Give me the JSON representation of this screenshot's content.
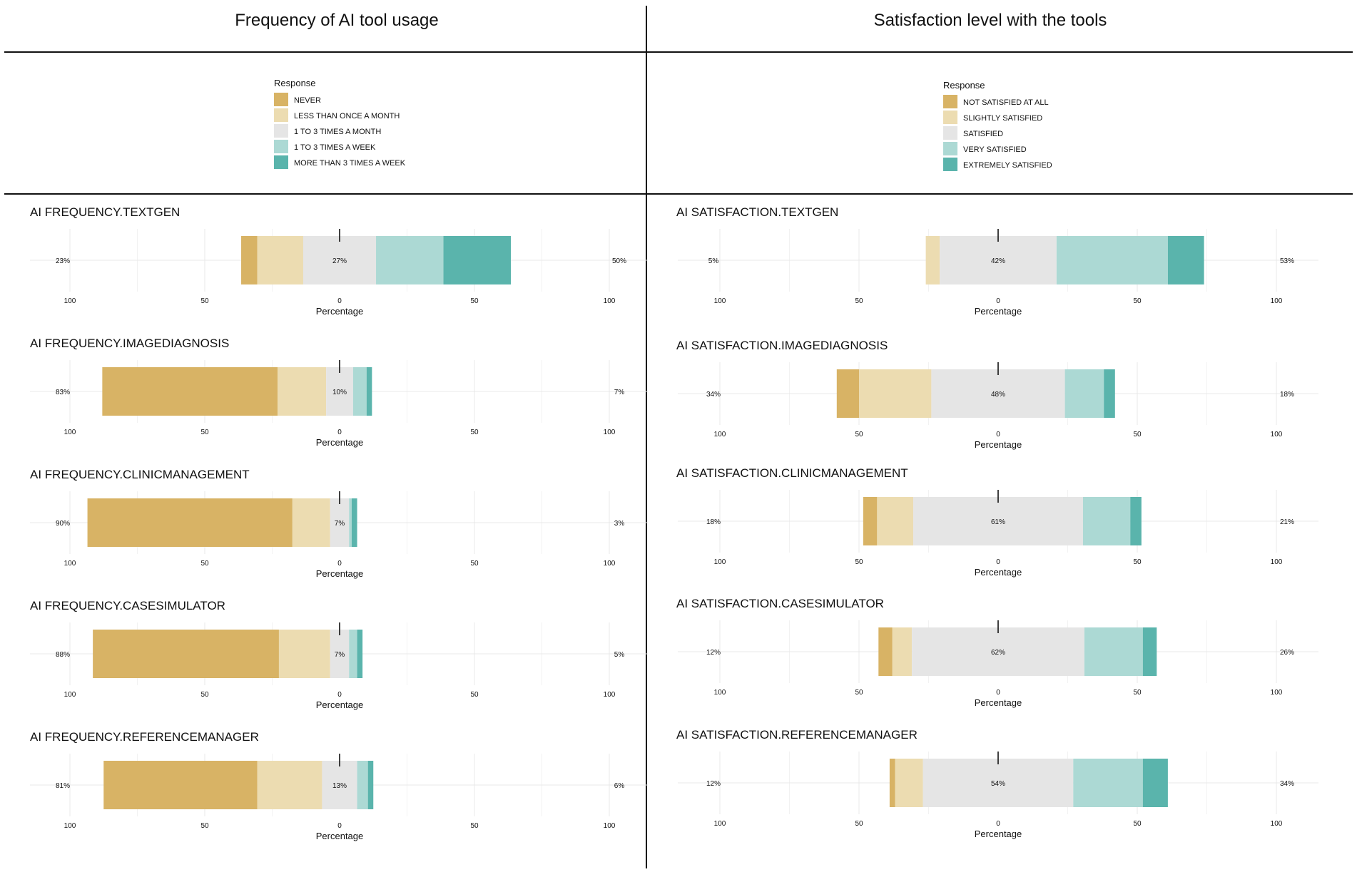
{
  "panels": [
    {
      "title": "Frequency of AI tool usage",
      "legend": {
        "title": "Response",
        "items": [
          "NEVER",
          "LESS THAN ONCE A MONTH",
          "1 TO 3 TIMES A MONTH",
          "1 TO 3 TIMES A WEEK",
          "MORE THAN 3 TIMES A WEEK"
        ]
      }
    },
    {
      "title": "Satisfaction level with the tools",
      "legend": {
        "title": "Response",
        "items": [
          "NOT SATISFIED AT ALL",
          "SLIGHTLY SATISFIED",
          "SATISFIED",
          "VERY SATISFIED",
          "EXTREMELY SATISFIED"
        ]
      }
    }
  ],
  "colors": [
    "#d8b365",
    "#ecdcb1",
    "#e5e5e5",
    "#acd9d4",
    "#5ab4ac"
  ],
  "chart_data": [
    {
      "type": "bar",
      "orientation": "horizontal-diverging",
      "title": "AI FREQUENCY.TEXTGEN",
      "xlabel": "Percentage",
      "xlim": [
        -100,
        100
      ],
      "tick_labels": [
        "100",
        "50",
        "0",
        "50",
        "100"
      ],
      "series": [
        {
          "name": "NEVER",
          "value": 6
        },
        {
          "name": "LESS THAN ONCE A MONTH",
          "value": 17
        },
        {
          "name": "1 TO 3 TIMES A MONTH",
          "value": 27
        },
        {
          "name": "1 TO 3 TIMES A WEEK",
          "value": 25
        },
        {
          "name": "MORE THAN 3 TIMES A WEEK",
          "value": 25
        }
      ],
      "labels": {
        "low": "23%",
        "neutral": "27%",
        "high": "50%"
      }
    },
    {
      "type": "bar",
      "orientation": "horizontal-diverging",
      "title": "AI FREQUENCY.IMAGEDIAGNOSIS",
      "xlabel": "Percentage",
      "xlim": [
        -100,
        100
      ],
      "tick_labels": [
        "100",
        "50",
        "0",
        "50",
        "100"
      ],
      "series": [
        {
          "name": "NEVER",
          "value": 65
        },
        {
          "name": "LESS THAN ONCE A MONTH",
          "value": 18
        },
        {
          "name": "1 TO 3 TIMES A MONTH",
          "value": 10
        },
        {
          "name": "1 TO 3 TIMES A WEEK",
          "value": 5
        },
        {
          "name": "MORE THAN 3 TIMES A WEEK",
          "value": 2
        }
      ],
      "labels": {
        "low": "83%",
        "neutral": "10%",
        "high": "7%"
      }
    },
    {
      "type": "bar",
      "orientation": "horizontal-diverging",
      "title": "AI FREQUENCY.CLINICMANAGEMENT",
      "xlabel": "Percentage",
      "xlim": [
        -100,
        100
      ],
      "tick_labels": [
        "100",
        "50",
        "0",
        "50",
        "100"
      ],
      "series": [
        {
          "name": "NEVER",
          "value": 76
        },
        {
          "name": "LESS THAN ONCE A MONTH",
          "value": 14
        },
        {
          "name": "1 TO 3 TIMES A MONTH",
          "value": 7
        },
        {
          "name": "1 TO 3 TIMES A WEEK",
          "value": 1
        },
        {
          "name": "MORE THAN 3 TIMES A WEEK",
          "value": 2
        }
      ],
      "labels": {
        "low": "90%",
        "neutral": "7%",
        "high": "3%"
      }
    },
    {
      "type": "bar",
      "orientation": "horizontal-diverging",
      "title": "AI FREQUENCY.CASESIMULATOR",
      "xlabel": "Percentage",
      "xlim": [
        -100,
        100
      ],
      "tick_labels": [
        "100",
        "50",
        "0",
        "50",
        "100"
      ],
      "series": [
        {
          "name": "NEVER",
          "value": 69
        },
        {
          "name": "LESS THAN ONCE A MONTH",
          "value": 19
        },
        {
          "name": "1 TO 3 TIMES A MONTH",
          "value": 7
        },
        {
          "name": "1 TO 3 TIMES A WEEK",
          "value": 3
        },
        {
          "name": "MORE THAN 3 TIMES A WEEK",
          "value": 2
        }
      ],
      "labels": {
        "low": "88%",
        "neutral": "7%",
        "high": "5%"
      }
    },
    {
      "type": "bar",
      "orientation": "horizontal-diverging",
      "title": "AI FREQUENCY.REFERENCEMANAGER",
      "xlabel": "Percentage",
      "xlim": [
        -100,
        100
      ],
      "tick_labels": [
        "100",
        "50",
        "0",
        "50",
        "100"
      ],
      "series": [
        {
          "name": "NEVER",
          "value": 57
        },
        {
          "name": "LESS THAN ONCE A MONTH",
          "value": 24
        },
        {
          "name": "1 TO 3 TIMES A MONTH",
          "value": 13
        },
        {
          "name": "1 TO 3 TIMES A WEEK",
          "value": 4
        },
        {
          "name": "MORE THAN 3 TIMES A WEEK",
          "value": 2
        }
      ],
      "labels": {
        "low": "81%",
        "neutral": "13%",
        "high": "6%"
      }
    },
    {
      "type": "bar",
      "orientation": "horizontal-diverging",
      "title": "AI SATISFACTION.TEXTGEN",
      "xlabel": "Percentage",
      "xlim": [
        -100,
        100
      ],
      "tick_labels": [
        "100",
        "50",
        "0",
        "50",
        "100"
      ],
      "series": [
        {
          "name": "NOT SATISFIED AT ALL",
          "value": 0
        },
        {
          "name": "SLIGHTLY SATISFIED",
          "value": 5
        },
        {
          "name": "SATISFIED",
          "value": 42
        },
        {
          "name": "VERY SATISFIED",
          "value": 40
        },
        {
          "name": "EXTREMELY SATISFIED",
          "value": 13
        }
      ],
      "labels": {
        "low": "5%",
        "neutral": "42%",
        "high": "53%"
      }
    },
    {
      "type": "bar",
      "orientation": "horizontal-diverging",
      "title": "AI SATISFACTION.IMAGEDIAGNOSIS",
      "xlabel": "Percentage",
      "xlim": [
        -100,
        100
      ],
      "tick_labels": [
        "100",
        "50",
        "0",
        "50",
        "100"
      ],
      "series": [
        {
          "name": "NOT SATISFIED AT ALL",
          "value": 8
        },
        {
          "name": "SLIGHTLY SATISFIED",
          "value": 26
        },
        {
          "name": "SATISFIED",
          "value": 48
        },
        {
          "name": "VERY SATISFIED",
          "value": 14
        },
        {
          "name": "EXTREMELY SATISFIED",
          "value": 4
        }
      ],
      "labels": {
        "low": "34%",
        "neutral": "48%",
        "high": "18%"
      }
    },
    {
      "type": "bar",
      "orientation": "horizontal-diverging",
      "title": "AI SATISFACTION.CLINICMANAGEMENT",
      "xlabel": "Percentage",
      "xlim": [
        -100,
        100
      ],
      "tick_labels": [
        "100",
        "50",
        "0",
        "50",
        "100"
      ],
      "series": [
        {
          "name": "NOT SATISFIED AT ALL",
          "value": 5
        },
        {
          "name": "SLIGHTLY SATISFIED",
          "value": 13
        },
        {
          "name": "SATISFIED",
          "value": 61
        },
        {
          "name": "VERY SATISFIED",
          "value": 17
        },
        {
          "name": "EXTREMELY SATISFIED",
          "value": 4
        }
      ],
      "labels": {
        "low": "18%",
        "neutral": "61%",
        "high": "21%"
      }
    },
    {
      "type": "bar",
      "orientation": "horizontal-diverging",
      "title": "AI SATISFACTION.CASESIMULATOR",
      "xlabel": "Percentage",
      "xlim": [
        -100,
        100
      ],
      "tick_labels": [
        "100",
        "50",
        "0",
        "50",
        "100"
      ],
      "series": [
        {
          "name": "NOT SATISFIED AT ALL",
          "value": 5
        },
        {
          "name": "SLIGHTLY SATISFIED",
          "value": 7
        },
        {
          "name": "SATISFIED",
          "value": 62
        },
        {
          "name": "VERY SATISFIED",
          "value": 21
        },
        {
          "name": "EXTREMELY SATISFIED",
          "value": 5
        }
      ],
      "labels": {
        "low": "12%",
        "neutral": "62%",
        "high": "26%"
      }
    },
    {
      "type": "bar",
      "orientation": "horizontal-diverging",
      "title": "AI SATISFACTION.REFERENCEMANAGER",
      "xlabel": "Percentage",
      "xlim": [
        -100,
        100
      ],
      "tick_labels": [
        "100",
        "50",
        "0",
        "50",
        "100"
      ],
      "series": [
        {
          "name": "NOT SATISFIED AT ALL",
          "value": 2
        },
        {
          "name": "SLIGHTLY SATISFIED",
          "value": 10
        },
        {
          "name": "SATISFIED",
          "value": 54
        },
        {
          "name": "VERY SATISFIED",
          "value": 25
        },
        {
          "name": "EXTREMELY SATISFIED",
          "value": 9
        }
      ],
      "labels": {
        "low": "12%",
        "neutral": "54%",
        "high": "34%"
      }
    }
  ]
}
